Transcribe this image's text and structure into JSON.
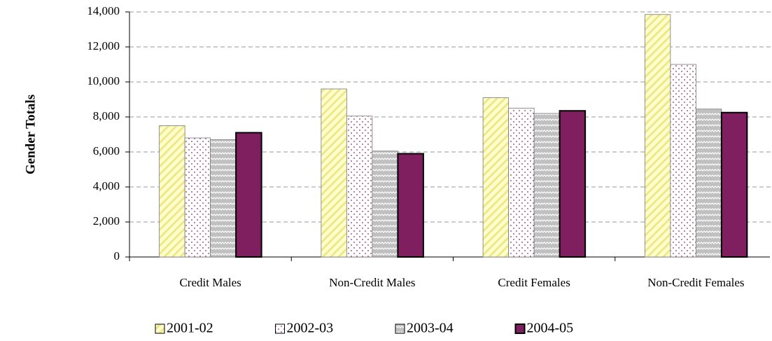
{
  "chart_data": {
    "type": "bar",
    "ylabel": "Gender Totals",
    "categories": [
      "Credit Males",
      "Non-Credit Males",
      "Credit Females",
      "Non-Credit Females"
    ],
    "series": [
      {
        "name": "2001-02",
        "color": "#ffffcc",
        "pattern": "stripes",
        "values": [
          7500,
          9600,
          9100,
          13850
        ]
      },
      {
        "name": "2002-03",
        "color": "#ffffff",
        "pattern": "dots",
        "values": [
          6800,
          8050,
          8500,
          11000
        ]
      },
      {
        "name": "2003-04",
        "color": "#c0c0c0",
        "pattern": "zigzag",
        "values": [
          6700,
          6050,
          8200,
          8450
        ]
      },
      {
        "name": "2004-05",
        "color": "#7f1f5f",
        "pattern": "solid",
        "values": [
          7100,
          5900,
          8350,
          8250
        ]
      }
    ],
    "ylim": [
      0,
      14000
    ],
    "yticks": [
      0,
      {
        "value": 2000,
        "label": "2,000"
      },
      {
        "value": 4000,
        "label": "4,000"
      },
      {
        "value": 6000,
        "label": "6,000"
      },
      {
        "value": 8000,
        "label": "8,000"
      },
      {
        "value": 10000,
        "label": "10,000"
      },
      {
        "value": 12000,
        "label": "12,000"
      },
      {
        "value": 14000,
        "label": "14,000"
      }
    ],
    "grid": true,
    "legend": "bottom"
  }
}
